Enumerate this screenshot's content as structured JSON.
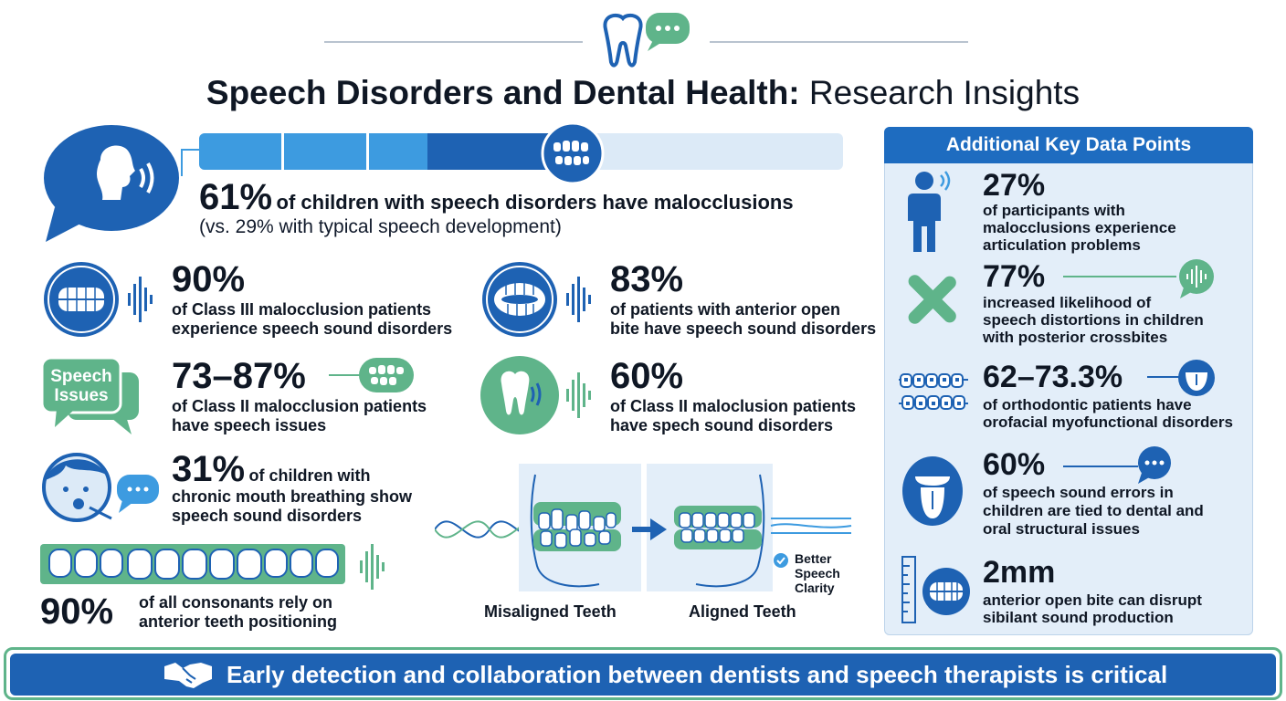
{
  "title": {
    "bold": "Speech Disorders and Dental Health:",
    "light": "Research Insights"
  },
  "hero": {
    "percent": "61%",
    "text": "of children with speech disorders have malocclusions",
    "sub": "(vs. 29% with typical speech development)",
    "progress": 0.61
  },
  "stats": [
    {
      "value": "90%",
      "text1": "of Class III malocclusion patients",
      "text2": "experience speech sound disorders"
    },
    {
      "value": "83%",
      "text1": "of patients with anterior open",
      "text2": "bite have speech sound disorders"
    },
    {
      "value": "73–87%",
      "text1": "of Class II malocclusion patients",
      "text2": "have speech issues",
      "badge1": "Speech",
      "badge2": "Issues"
    },
    {
      "value": "60%",
      "text1": "of Class II maloclusion patients",
      "text2": "have spech sound disorders"
    },
    {
      "value": "31%",
      "text_inline": "of children with",
      "text2": "chronic mouth breathing show",
      "text3": "speech sound disorders"
    },
    {
      "value": "90%",
      "text1": "of all consonants rely on",
      "text2": "anterior teeth positioning"
    }
  ],
  "comparison": {
    "left_label": "Misaligned Teeth",
    "right_label": "Aligned Teeth",
    "check1": "Better",
    "check2": "Speech",
    "check3": "Clarity"
  },
  "panel": {
    "title": "Additional Key Data Points",
    "items": [
      {
        "value": "27%",
        "lines": [
          "of participants with",
          "malocclusions experience",
          "articulation problems"
        ]
      },
      {
        "value": "77%",
        "lines": [
          "increased likelihood of",
          "speech distortions in children",
          "with posterior crossbites"
        ]
      },
      {
        "value": "62–73.3%",
        "lines": [
          "of orthodontic patients have",
          "orofacial myofunctional disorders"
        ]
      },
      {
        "value": "60%",
        "lines": [
          "of speech sound errors in",
          "children are tied to dental and",
          "oral structural issues"
        ]
      },
      {
        "value": "2mm",
        "lines": [
          "anterior open bite can disrupt",
          "sibilant sound production"
        ]
      }
    ]
  },
  "banner": {
    "text": "Early detection and collaboration between dentists and speech therapists is critical"
  },
  "colors": {
    "blue": "#1e62b3",
    "light_blue": "#3d9be0",
    "pale_blue": "#dceaf7",
    "green": "#5fb48a",
    "pale_green": "#cfe8da",
    "navy": "#0f1724"
  },
  "icons": [
    "tooth-speech-icon",
    "head-speaking-icon",
    "teeth-icon",
    "speech-bubble-icon",
    "tooth-sound-icon",
    "child-face-icon",
    "person-icon",
    "crossbite-icon",
    "braces-icon",
    "tongue-icon",
    "ruler-icon",
    "handshake-icon",
    "check-icon"
  ]
}
